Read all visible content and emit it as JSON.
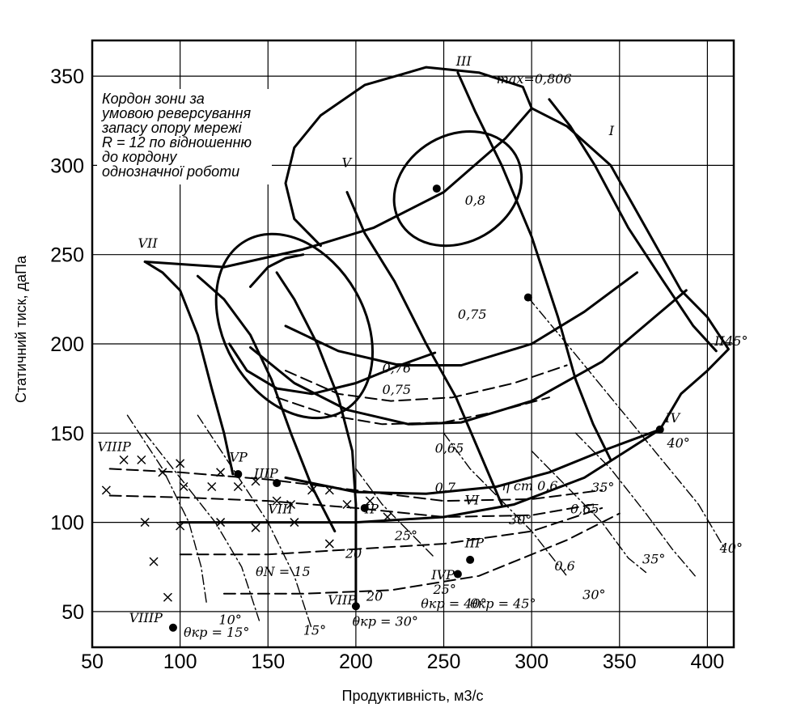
{
  "chart_data": {
    "type": "line",
    "xlabel": "Продуктивність, м3/с",
    "ylabel": "Статичний тиск, даПа",
    "xlim": [
      50,
      415
    ],
    "ylim": [
      30,
      370
    ],
    "x_ticks": [
      50,
      100,
      150,
      200,
      250,
      300,
      350,
      400
    ],
    "y_ticks": [
      50,
      100,
      150,
      200,
      250,
      300,
      350
    ],
    "grid": true,
    "note_lines": [
      "Кордон зони за",
      "умовою реверсування",
      "запасу опору мережі",
      "R = 12 по відношенню",
      "до кордону",
      "однозначної роботи"
    ],
    "curve_labels": [
      {
        "text": "max=0,806",
        "x": 280,
        "y": 346
      },
      {
        "text": "0,8",
        "x": 262,
        "y": 278
      },
      {
        "text": "0,75",
        "x": 258,
        "y": 214
      },
      {
        "text": "0,76",
        "x": 215,
        "y": 184
      },
      {
        "text": "0,75",
        "x": 215,
        "y": 172
      },
      {
        "text": "0,65",
        "x": 245,
        "y": 139
      },
      {
        "text": "0,7",
        "x": 245,
        "y": 117
      },
      {
        "text": "η ст 0,6",
        "x": 283,
        "y": 118
      },
      {
        "text": "0,65",
        "x": 322,
        "y": 105
      },
      {
        "text": "0,6",
        "x": 313,
        "y": 73
      },
      {
        "text": "θN = 15",
        "x": 143,
        "y": 70
      },
      {
        "text": "θкр = 15°",
        "x": 102,
        "y": 36
      },
      {
        "text": "θкр = 30°",
        "x": 198,
        "y": 42
      },
      {
        "text": "θкр = 40°",
        "x": 237,
        "y": 52
      },
      {
        "text": "θкр = 45°",
        "x": 265,
        "y": 52
      },
      {
        "text": "VII",
        "x": 76,
        "y": 254
      },
      {
        "text": "V",
        "x": 192,
        "y": 299
      },
      {
        "text": "III",
        "x": 257,
        "y": 356
      },
      {
        "text": "I",
        "x": 344,
        "y": 317
      },
      {
        "text": "II",
        "x": 404,
        "y": 199
      },
      {
        "text": "45°",
        "x": 410,
        "y": 199
      },
      {
        "text": "IV",
        "x": 376,
        "y": 156
      },
      {
        "text": "VI",
        "x": 262,
        "y": 110
      },
      {
        "text": "VIIIР",
        "x": 53,
        "y": 140
      },
      {
        "text": "VР",
        "x": 128,
        "y": 134
      },
      {
        "text": "IIIР",
        "x": 142,
        "y": 125
      },
      {
        "text": "VIII",
        "x": 150,
        "y": 105
      },
      {
        "text": "IР",
        "x": 205,
        "y": 105
      },
      {
        "text": "IIР",
        "x": 262,
        "y": 86
      },
      {
        "text": "IVР",
        "x": 243,
        "y": 68
      },
      {
        "text": "VIIР",
        "x": 184,
        "y": 54
      },
      {
        "text": "VIIIР",
        "x": 71,
        "y": 44
      },
      {
        "text": "20",
        "x": 194,
        "y": 80
      },
      {
        "text": "20",
        "x": 206,
        "y": 56
      },
      {
        "text": "25°",
        "x": 222,
        "y": 90
      },
      {
        "text": "25°",
        "x": 244,
        "y": 60
      },
      {
        "text": "30°",
        "x": 287,
        "y": 99
      },
      {
        "text": "30°",
        "x": 329,
        "y": 57
      },
      {
        "text": "35°",
        "x": 334,
        "y": 117
      },
      {
        "text": "35°",
        "x": 363,
        "y": 77
      },
      {
        "text": "40°",
        "x": 377,
        "y": 142
      },
      {
        "text": "40°",
        "x": 407,
        "y": 83
      },
      {
        "text": "10°",
        "x": 122,
        "y": 43
      },
      {
        "text": "15°",
        "x": 170,
        "y": 37
      }
    ],
    "operating_points": [
      [
        246,
        287
      ],
      [
        298,
        226
      ],
      [
        373,
        152
      ],
      [
        133,
        127
      ],
      [
        155,
        122
      ],
      [
        205,
        108
      ],
      [
        265,
        79
      ],
      [
        258,
        71
      ],
      [
        200,
        53
      ],
      [
        96,
        41
      ]
    ],
    "series": [
      {
        "style": "heavy",
        "points": [
          [
            80,
            246
          ],
          [
            125,
            243
          ],
          [
            170,
            253
          ],
          [
            210,
            265
          ],
          [
            250,
            285
          ],
          [
            285,
            315
          ],
          [
            300,
            332
          ],
          [
            295,
            344
          ],
          [
            270,
            352
          ],
          [
            240,
            355
          ],
          [
            205,
            345
          ],
          [
            180,
            328
          ],
          [
            165,
            310
          ],
          [
            160,
            290
          ],
          [
            165,
            270
          ],
          [
            180,
            255
          ]
        ]
      },
      {
        "style": "heavy",
        "points": [
          [
            300,
            332
          ],
          [
            320,
            322
          ],
          [
            345,
            300
          ],
          [
            365,
            265
          ],
          [
            385,
            230
          ],
          [
            400,
            215
          ],
          [
            412,
            197
          ],
          [
            400,
            185
          ],
          [
            385,
            172
          ],
          [
            373,
            152
          ]
        ]
      },
      {
        "style": "heavy",
        "points": [
          [
            80,
            246
          ],
          [
            90,
            240
          ],
          [
            100,
            230
          ],
          [
            110,
            205
          ],
          [
            118,
            175
          ],
          [
            125,
            150
          ],
          [
            130,
            127
          ]
        ]
      },
      {
        "style": "heavy",
        "points": [
          [
            110,
            238
          ],
          [
            125,
            225
          ],
          [
            140,
            205
          ],
          [
            152,
            180
          ],
          [
            163,
            150
          ],
          [
            175,
            120
          ],
          [
            188,
            95
          ]
        ]
      },
      {
        "style": "heavy",
        "points": [
          [
            155,
            240
          ],
          [
            165,
            225
          ],
          [
            178,
            200
          ],
          [
            190,
            170
          ],
          [
            198,
            140
          ],
          [
            200,
            110
          ],
          [
            200,
            53
          ]
        ]
      },
      {
        "style": "heavy",
        "points": [
          [
            195,
            285
          ],
          [
            205,
            262
          ],
          [
            222,
            235
          ],
          [
            240,
            200
          ],
          [
            257,
            170
          ],
          [
            270,
            140
          ],
          [
            283,
            110
          ]
        ]
      },
      {
        "style": "heavy",
        "points": [
          [
            258,
            352
          ],
          [
            268,
            330
          ],
          [
            283,
            300
          ],
          [
            300,
            260
          ],
          [
            315,
            215
          ],
          [
            325,
            180
          ],
          [
            335,
            155
          ],
          [
            345,
            135
          ]
        ]
      },
      {
        "style": "heavy",
        "points": [
          [
            310,
            337
          ],
          [
            322,
            322
          ],
          [
            336,
            300
          ],
          [
            355,
            265
          ],
          [
            375,
            235
          ],
          [
            392,
            210
          ],
          [
            405,
            196
          ]
        ]
      },
      {
        "style": "heavy",
        "points": [
          [
            140,
            198
          ],
          [
            165,
            178
          ],
          [
            195,
            163
          ],
          [
            230,
            155
          ],
          [
            260,
            156
          ],
          [
            300,
            168
          ],
          [
            340,
            190
          ],
          [
            370,
            215
          ],
          [
            388,
            230
          ]
        ]
      },
      {
        "style": "heavy",
        "points": [
          [
            160,
            210
          ],
          [
            190,
            196
          ],
          [
            225,
            188
          ],
          [
            260,
            188
          ],
          [
            300,
            200
          ],
          [
            330,
            218
          ],
          [
            360,
            240
          ]
        ]
      },
      {
        "style": "heavy",
        "points": [
          [
            160,
            125
          ],
          [
            200,
            117
          ],
          [
            240,
            116
          ],
          [
            280,
            120
          ],
          [
            310,
            128
          ],
          [
            340,
            140
          ],
          [
            373,
            152
          ]
        ]
      },
      {
        "style": "heavy",
        "points": [
          [
            100,
            100
          ],
          [
            150,
            100
          ],
          [
            200,
            100
          ],
          [
            250,
            103
          ],
          [
            290,
            110
          ],
          [
            330,
            125
          ],
          [
            373,
            152
          ]
        ]
      },
      {
        "style": "heavy",
        "points": [
          [
            140,
            232
          ],
          [
            150,
            243
          ],
          [
            160,
            248
          ],
          [
            170,
            250
          ]
        ]
      },
      {
        "style": "heavy",
        "points": [
          [
            128,
            200
          ],
          [
            138,
            185
          ],
          [
            155,
            175
          ],
          [
            175,
            172
          ],
          [
            200,
            178
          ],
          [
            225,
            188
          ],
          [
            245,
            195
          ]
        ]
      },
      {
        "style": "ellipse",
        "cx": 258,
        "cy": 287,
        "rx": 38,
        "ry": 30
      },
      {
        "style": "ellipse",
        "cx": 165,
        "cy": 210,
        "rx": 40,
        "ry": 55
      },
      {
        "style": "dashed",
        "points": [
          [
            160,
            185
          ],
          [
            190,
            172
          ],
          [
            220,
            168
          ],
          [
            255,
            170
          ],
          [
            290,
            178
          ],
          [
            320,
            188
          ]
        ]
      },
      {
        "style": "dashed",
        "points": [
          [
            155,
            170
          ],
          [
            185,
            160
          ],
          [
            215,
            155
          ],
          [
            250,
            156
          ],
          [
            280,
            162
          ],
          [
            310,
            170
          ]
        ]
      },
      {
        "style": "dashed",
        "points": [
          [
            60,
            130
          ],
          [
            100,
            128
          ],
          [
            150,
            124
          ],
          [
            200,
            118
          ],
          [
            250,
            112
          ],
          [
            300,
            113
          ],
          [
            340,
            118
          ]
        ]
      },
      {
        "style": "dashed",
        "points": [
          [
            60,
            115
          ],
          [
            100,
            114
          ],
          [
            150,
            112
          ],
          [
            200,
            108
          ],
          [
            250,
            103
          ],
          [
            300,
            104
          ],
          [
            335,
            110
          ]
        ]
      },
      {
        "style": "dashed",
        "points": [
          [
            100,
            82
          ],
          [
            150,
            82
          ],
          [
            200,
            85
          ],
          [
            250,
            88
          ],
          [
            300,
            95
          ],
          [
            340,
            108
          ]
        ]
      },
      {
        "style": "dashed",
        "points": [
          [
            125,
            60
          ],
          [
            170,
            60
          ],
          [
            220,
            62
          ],
          [
            270,
            70
          ],
          [
            320,
            90
          ],
          [
            350,
            105
          ]
        ]
      },
      {
        "style": "dashdot",
        "points": [
          [
            70,
            160
          ],
          [
            90,
            130
          ],
          [
            105,
            100
          ],
          [
            112,
            75
          ],
          [
            115,
            55
          ]
        ]
      },
      {
        "style": "dashdot",
        "points": [
          [
            80,
            150
          ],
          [
            100,
            125
          ],
          [
            120,
            100
          ],
          [
            135,
            75
          ],
          [
            145,
            45
          ]
        ]
      },
      {
        "style": "dashdot",
        "points": [
          [
            110,
            160
          ],
          [
            130,
            130
          ],
          [
            150,
            100
          ],
          [
            165,
            70
          ],
          [
            175,
            40
          ]
        ]
      },
      {
        "style": "dashdot",
        "points": [
          [
            200,
            130
          ],
          [
            215,
            110
          ],
          [
            230,
            95
          ],
          [
            245,
            80
          ]
        ]
      },
      {
        "style": "dashdot",
        "points": [
          [
            250,
            150
          ],
          [
            265,
            130
          ],
          [
            285,
            110
          ],
          [
            300,
            95
          ],
          [
            320,
            70
          ]
        ]
      },
      {
        "style": "dashdot",
        "points": [
          [
            298,
            226
          ],
          [
            320,
            200
          ],
          [
            345,
            170
          ],
          [
            370,
            140
          ],
          [
            395,
            110
          ],
          [
            410,
            85
          ]
        ]
      },
      {
        "style": "dashdot",
        "points": [
          [
            325,
            150
          ],
          [
            345,
            130
          ],
          [
            365,
            105
          ],
          [
            380,
            85
          ],
          [
            393,
            70
          ]
        ]
      },
      {
        "style": "dashdot",
        "points": [
          [
            300,
            140
          ],
          [
            320,
            120
          ],
          [
            340,
            100
          ],
          [
            355,
            80
          ],
          [
            365,
            72
          ]
        ]
      },
      {
        "style": "cross",
        "points": [
          [
            68,
            135
          ],
          [
            78,
            135
          ],
          [
            90,
            128
          ],
          [
            100,
            133
          ],
          [
            102,
            120
          ],
          [
            118,
            120
          ],
          [
            123,
            128
          ],
          [
            133,
            120
          ],
          [
            143,
            123
          ],
          [
            155,
            112
          ],
          [
            163,
            110
          ],
          [
            175,
            118
          ],
          [
            185,
            118
          ],
          [
            195,
            110
          ],
          [
            208,
            112
          ],
          [
            218,
            103
          ],
          [
            58,
            118
          ],
          [
            80,
            100
          ],
          [
            100,
            98
          ],
          [
            123,
            100
          ],
          [
            143,
            97
          ],
          [
            165,
            100
          ],
          [
            185,
            88
          ],
          [
            85,
            78
          ],
          [
            93,
            58
          ]
        ]
      }
    ]
  }
}
